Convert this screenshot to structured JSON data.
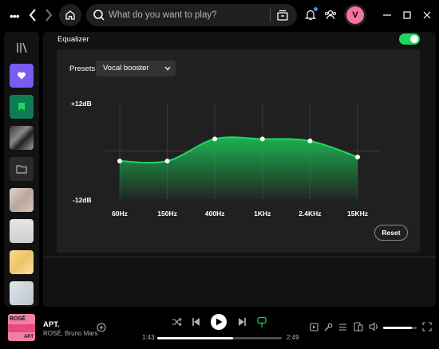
{
  "topbar": {
    "search_placeholder": "What do you want to play?",
    "avatar_initial": "V"
  },
  "equalizer": {
    "title": "Equalizer",
    "enabled": true,
    "presets_label": "Presets",
    "preset_selected": "Vocal booster",
    "db_max_label": "+12dB",
    "db_min_label": "-12dB",
    "bands": [
      {
        "label": "60Hz",
        "gain_db": -2.5
      },
      {
        "label": "150Hz",
        "gain_db": -2.5
      },
      {
        "label": "400Hz",
        "gain_db": 3
      },
      {
        "label": "1KHz",
        "gain_db": 3
      },
      {
        "label": "2.4KHz",
        "gain_db": 2.5
      },
      {
        "label": "15KHz",
        "gain_db": -1.5
      }
    ],
    "db_range": [
      -12,
      12
    ],
    "reset_label": "Reset",
    "accent_color": "#1ed760"
  },
  "now_playing": {
    "title": "APT.",
    "artist": "ROSÉ, Bruno Mars",
    "cover_text_top": "ROSÉ",
    "cover_text_bottom": "APT",
    "time_current": "1:43",
    "time_total": "2:49",
    "progress_fraction": 0.61,
    "volume_fraction": 0.85
  },
  "sidebar": {
    "items": [
      {
        "name": "liked-songs",
        "color": "#6b46e6"
      },
      {
        "name": "your-episodes",
        "color": "#0d7a4f"
      },
      {
        "name": "playlist-1",
        "color": "#2a2a2a"
      },
      {
        "name": "folder",
        "color": "#2a2a2a"
      },
      {
        "name": "playlist-2",
        "color": "#c9b9b4"
      },
      {
        "name": "playlist-3",
        "color": "#d8d8d8"
      },
      {
        "name": "playlist-4",
        "color": "#f2d27a"
      },
      {
        "name": "playlist-5",
        "color": "#cdd3d8"
      }
    ]
  }
}
